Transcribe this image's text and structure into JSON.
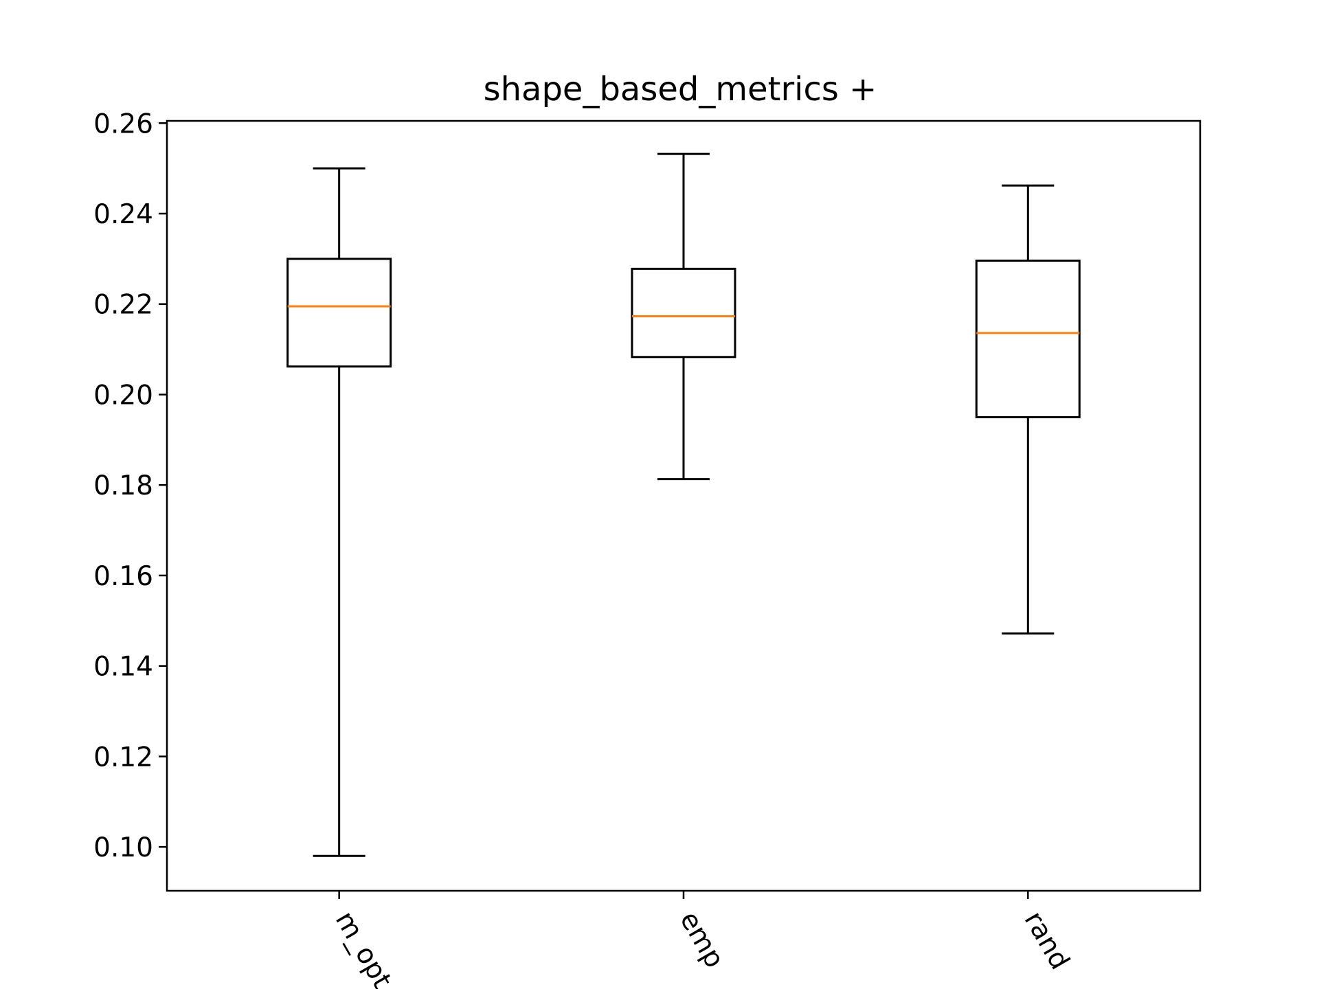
{
  "chart_data": {
    "type": "box",
    "title": "shape_based_metrics +",
    "xlabel": "",
    "ylabel": "",
    "categories": [
      "m_opt",
      "emp",
      "rand"
    ],
    "boxes": [
      {
        "label": "m_opt",
        "whisker_low": 0.098,
        "q1": 0.2062,
        "median": 0.2195,
        "q3": 0.23,
        "whisker_high": 0.25
      },
      {
        "label": "emp",
        "whisker_low": 0.1813,
        "q1": 0.2083,
        "median": 0.2173,
        "q3": 0.2278,
        "whisker_high": 0.2532
      },
      {
        "label": "rand",
        "whisker_low": 0.1472,
        "q1": 0.195,
        "median": 0.2136,
        "q3": 0.2296,
        "whisker_high": 0.2462
      }
    ],
    "yticks": [
      "0.10",
      "0.12",
      "0.14",
      "0.16",
      "0.18",
      "0.20",
      "0.22",
      "0.24",
      "0.26"
    ],
    "ylim": [
      0.0903,
      0.2605
    ],
    "xtick_rotation_deg": -60,
    "grid": false,
    "colors": {
      "box": "#000000",
      "median": "#ff7f0e"
    }
  }
}
